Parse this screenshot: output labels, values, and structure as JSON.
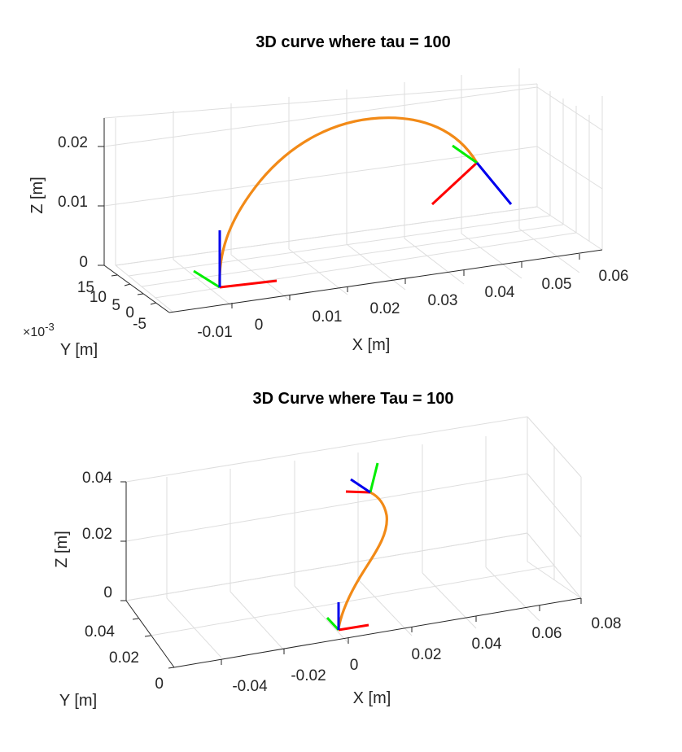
{
  "chart_data": [
    {
      "type": "line",
      "projection": "3d",
      "title": "3D curve where tau = 100",
      "xlabel": "X [m]",
      "ylabel": "Y [m]",
      "zlabel": "Z [m]",
      "y_exponent_label": "×10",
      "y_exponent_power": "-3",
      "x_ticks": [
        "-0.01",
        "0",
        "0.01",
        "0.02",
        "0.03",
        "0.04",
        "0.05",
        "0.06"
      ],
      "y_ticks": [
        "-5",
        "0",
        "5",
        "10",
        "15"
      ],
      "z_ticks": [
        "0",
        "0.01",
        "0.02"
      ],
      "xlim": [
        -0.015,
        0.065
      ],
      "ylim": [
        -0.008,
        0.017
      ],
      "zlim": [
        0,
        0.024
      ],
      "grid": true,
      "series": [
        {
          "color": "#f28a17",
          "x": [
            0,
            0.002,
            0.005,
            0.009,
            0.014,
            0.019,
            0.024,
            0.029,
            0.034,
            0.038,
            0.041,
            0.043,
            0.044
          ],
          "y": [
            0,
            0.0005,
            0.001,
            0.002,
            0.003,
            0.004,
            0.005,
            0.006,
            0.007,
            0.008,
            0.0085,
            0.009,
            0.009
          ],
          "z": [
            0,
            0.006,
            0.011,
            0.015,
            0.018,
            0.02,
            0.021,
            0.021,
            0.02,
            0.018,
            0.016,
            0.014,
            0.013
          ]
        }
      ],
      "frames": [
        {
          "at": "start",
          "axes": [
            "x",
            "y",
            "z"
          ],
          "colors": [
            "#ff0000",
            "#00ee00",
            "#0000ee"
          ]
        },
        {
          "at": "end",
          "axes": [
            "x",
            "y",
            "z"
          ],
          "colors": [
            "#ff0000",
            "#00ee00",
            "#0000ee"
          ]
        }
      ]
    },
    {
      "type": "line",
      "projection": "3d",
      "title": "3D Curve where Tau = 100",
      "xlabel": "X [m]",
      "ylabel": "Y [m]",
      "zlabel": "Z [m]",
      "x_ticks": [
        "-0.04",
        "-0.02",
        "0",
        "0.02",
        "0.04",
        "0.06",
        "0.08"
      ],
      "y_ticks": [
        "0",
        "0.02",
        "0.04"
      ],
      "z_ticks": [
        "0",
        "0.02",
        "0.04"
      ],
      "xlim": [
        -0.06,
        0.08
      ],
      "ylim": [
        0,
        0.05
      ],
      "zlim": [
        0,
        0.04
      ],
      "grid": true,
      "series": [
        {
          "color": "#f28a17",
          "x": [
            0,
            0.003,
            0.008,
            0.013,
            0.017,
            0.019,
            0.018,
            0.015,
            0.012
          ],
          "y": [
            0,
            0.002,
            0.005,
            0.008,
            0.011,
            0.014,
            0.017,
            0.02,
            0.022
          ],
          "z": [
            0,
            0.006,
            0.013,
            0.02,
            0.026,
            0.031,
            0.034,
            0.036,
            0.037
          ]
        }
      ],
      "frames": [
        {
          "at": "start",
          "axes": [
            "x",
            "y",
            "z"
          ],
          "colors": [
            "#ff0000",
            "#00ee00",
            "#0000ee"
          ]
        },
        {
          "at": "end",
          "axes": [
            "x",
            "y",
            "z"
          ],
          "colors": [
            "#ff0000",
            "#00ee00",
            "#0000ee"
          ]
        }
      ]
    }
  ]
}
